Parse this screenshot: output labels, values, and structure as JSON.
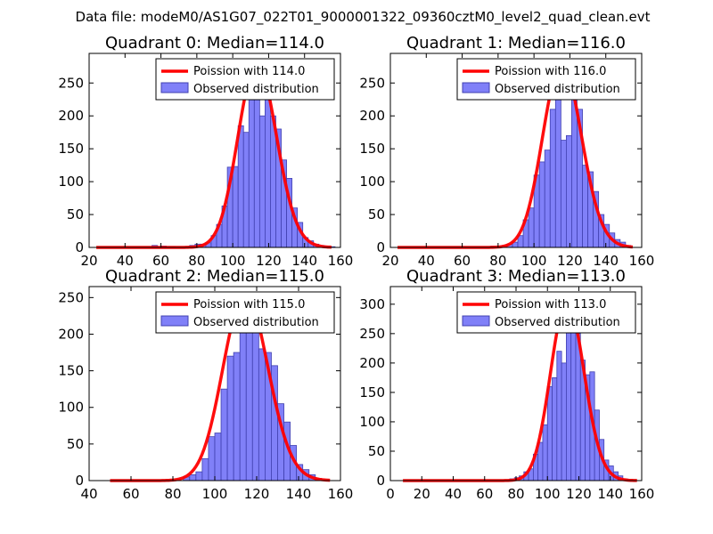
{
  "figure": {
    "suptitle": "Data file: modeM0/AS1G07_022T01_9000001322_09360cztM0_level2_quad_clean.evt"
  },
  "colors": {
    "bar_fill": "#8080f8",
    "bar_edge": "#4040b0",
    "curve": "#ff0000",
    "axes": "#000000"
  },
  "chart_data": [
    {
      "type": "bar",
      "title": "Quadrant 0: Median=114.0",
      "legend": {
        "poisson": "Poission with 114.0",
        "observed": "Observed distribution",
        "placement": "top-right"
      },
      "xlim": [
        20,
        160
      ],
      "ylim": [
        0,
        295
      ],
      "xticks": [
        "20",
        "40",
        "60",
        "80",
        "100",
        "120",
        "140",
        "160"
      ],
      "yticks": [
        "0",
        "50",
        "100",
        "150",
        "200",
        "250"
      ],
      "xticks_val": [
        20,
        40,
        60,
        80,
        100,
        120,
        140,
        160
      ],
      "yticks_val": [
        0,
        50,
        100,
        150,
        200,
        250
      ],
      "bin_width": 3,
      "bins": [
        [
          55,
          3
        ],
        [
          60,
          2
        ],
        [
          65,
          1
        ],
        [
          76,
          3
        ],
        [
          79,
          5
        ],
        [
          82,
          5
        ],
        [
          85,
          7
        ],
        [
          88,
          18
        ],
        [
          91,
          35
        ],
        [
          94,
          63
        ],
        [
          97,
          122
        ],
        [
          100,
          123
        ],
        [
          103,
          185
        ],
        [
          106,
          175
        ],
        [
          109,
          240
        ],
        [
          112,
          283
        ],
        [
          115,
          200
        ],
        [
          118,
          245
        ],
        [
          121,
          200
        ],
        [
          124,
          180
        ],
        [
          127,
          133
        ],
        [
          130,
          105
        ],
        [
          133,
          60
        ],
        [
          136,
          38
        ],
        [
          139,
          15
        ],
        [
          142,
          10
        ],
        [
          145,
          5
        ],
        [
          148,
          3
        ],
        [
          151,
          2
        ],
        [
          154,
          1
        ]
      ],
      "curve_mean": 114.0,
      "curve_peak": 280,
      "curve_range": [
        24,
        155
      ]
    },
    {
      "type": "bar",
      "title": "Quadrant 1: Median=116.0",
      "legend": {
        "poisson": "Poission with 116.0",
        "observed": "Observed distribution",
        "placement": "top-right"
      },
      "xlim": [
        20,
        160
      ],
      "ylim": [
        0,
        295
      ],
      "xticks": [
        "20",
        "40",
        "60",
        "80",
        "100",
        "120",
        "140",
        "160"
      ],
      "yticks": [
        "0",
        "50",
        "100",
        "150",
        "200",
        "250"
      ],
      "xticks_val": [
        20,
        40,
        60,
        80,
        100,
        120,
        140,
        160
      ],
      "yticks_val": [
        0,
        50,
        100,
        150,
        200,
        250
      ],
      "bin_width": 3,
      "bins": [
        [
          76,
          2
        ],
        [
          82,
          3
        ],
        [
          85,
          5
        ],
        [
          88,
          8
        ],
        [
          91,
          18
        ],
        [
          94,
          42
        ],
        [
          97,
          60
        ],
        [
          100,
          110
        ],
        [
          103,
          130
        ],
        [
          106,
          148
        ],
        [
          109,
          210
        ],
        [
          112,
          255
        ],
        [
          115,
          163
        ],
        [
          118,
          170
        ],
        [
          121,
          280
        ],
        [
          124,
          210
        ],
        [
          127,
          125
        ],
        [
          130,
          115
        ],
        [
          133,
          85
        ],
        [
          136,
          50
        ],
        [
          139,
          35
        ],
        [
          142,
          22
        ],
        [
          145,
          12
        ],
        [
          148,
          8
        ],
        [
          151,
          3
        ]
      ],
      "curve_mean": 116.0,
      "curve_peak": 280,
      "curve_range": [
        24,
        155
      ]
    },
    {
      "type": "bar",
      "title": "Quadrant 2: Median=115.0",
      "legend": {
        "poisson": "Poission with 115.0",
        "observed": "Observed distribution",
        "placement": "top-right"
      },
      "xlim": [
        40,
        160
      ],
      "ylim": [
        0,
        265
      ],
      "xticks": [
        "40",
        "60",
        "80",
        "100",
        "120",
        "140",
        "160"
      ],
      "yticks": [
        "0",
        "50",
        "100",
        "150",
        "200",
        "250"
      ],
      "xticks_val": [
        40,
        60,
        80,
        100,
        120,
        140,
        160
      ],
      "yticks_val": [
        0,
        50,
        100,
        150,
        200,
        250
      ],
      "bin_width": 3,
      "bins": [
        [
          85,
          5
        ],
        [
          88,
          8
        ],
        [
          91,
          12
        ],
        [
          94,
          30
        ],
        [
          97,
          60
        ],
        [
          100,
          65
        ],
        [
          103,
          125
        ],
        [
          106,
          170
        ],
        [
          109,
          175
        ],
        [
          112,
          210
        ],
        [
          115,
          215
        ],
        [
          118,
          248
        ],
        [
          121,
          180
        ],
        [
          124,
          175
        ],
        [
          127,
          157
        ],
        [
          130,
          105
        ],
        [
          133,
          80
        ],
        [
          136,
          48
        ],
        [
          139,
          22
        ],
        [
          142,
          15
        ],
        [
          145,
          8
        ],
        [
          148,
          3
        ]
      ],
      "curve_mean": 115.0,
      "curve_peak": 255,
      "curve_range": [
        50,
        155
      ]
    },
    {
      "type": "bar",
      "title": "Quadrant 3: Median=113.0",
      "legend": {
        "poisson": "Poission with 113.0",
        "observed": "Observed distribution",
        "placement": "top-right"
      },
      "xlim": [
        0,
        160
      ],
      "ylim": [
        0,
        330
      ],
      "xticks": [
        "0",
        "20",
        "40",
        "60",
        "80",
        "100",
        "120",
        "140",
        "160"
      ],
      "yticks": [
        "0",
        "50",
        "100",
        "150",
        "200",
        "250",
        "300"
      ],
      "xticks_val": [
        0,
        20,
        40,
        60,
        80,
        100,
        120,
        140,
        160
      ],
      "yticks_val": [
        0,
        50,
        100,
        150,
        200,
        250,
        300
      ],
      "bin_width": 3,
      "bins": [
        [
          76,
          3
        ],
        [
          79,
          5
        ],
        [
          82,
          8
        ],
        [
          85,
          15
        ],
        [
          88,
          20
        ],
        [
          91,
          45
        ],
        [
          94,
          65
        ],
        [
          97,
          95
        ],
        [
          100,
          160
        ],
        [
          103,
          175
        ],
        [
          106,
          220
        ],
        [
          109,
          200
        ],
        [
          112,
          262
        ],
        [
          115,
          295
        ],
        [
          118,
          250
        ],
        [
          121,
          205
        ],
        [
          124,
          180
        ],
        [
          127,
          185
        ],
        [
          130,
          120
        ],
        [
          133,
          70
        ],
        [
          136,
          35
        ],
        [
          139,
          25
        ],
        [
          142,
          15
        ],
        [
          145,
          8
        ],
        [
          148,
          3
        ]
      ],
      "curve_mean": 113.0,
      "curve_peak": 305,
      "curve_range": [
        8,
        157
      ]
    }
  ]
}
